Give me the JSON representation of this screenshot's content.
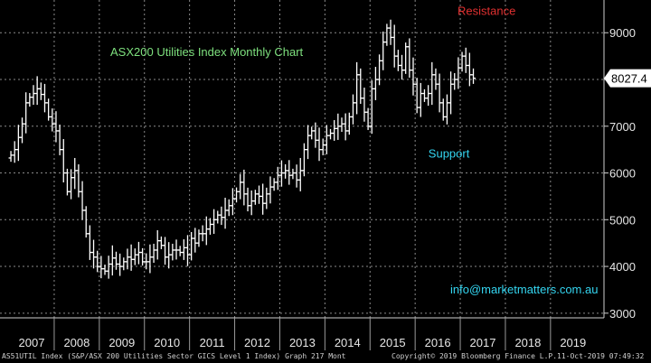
{
  "chart_data": {
    "type": "bar",
    "style": "ohlc",
    "title": "ASX200 Utilities Index Monthly Chart",
    "xlabel": "",
    "ylabel": "",
    "x_tick_labels": [
      "2007",
      "2008",
      "2009",
      "2010",
      "2011",
      "2012",
      "2013",
      "2014",
      "2015",
      "2016",
      "2017",
      "2018",
      "2019"
    ],
    "y_tick_labels": [
      "3000",
      "4000",
      "5000",
      "6000",
      "7000",
      "8000",
      "9000"
    ],
    "ylim": [
      2900,
      9700
    ],
    "grid": true,
    "last_value_label": "8027.4",
    "last_value": 8027.4,
    "annotations": [
      {
        "text": "Resistance",
        "x": "2017-08",
        "y": 9380,
        "color": "#e03030"
      },
      {
        "text": "Support",
        "x": "2016-10",
        "y": 6330,
        "color": "#34d5f0"
      },
      {
        "text": "info@marketmatters.com.au",
        "x": "2018-06",
        "y": 3420,
        "color": "#34d5f0"
      }
    ],
    "colors": {
      "background": "#000000",
      "bars": "#ffffff",
      "grid": "#888888",
      "title": "#7ee07e"
    },
    "series": [
      {
        "close": [
          6380,
          6500,
          6760,
          7050,
          7500,
          7620,
          7700,
          7800,
          7680,
          7500,
          7200,
          7050,
          6900,
          6500,
          6000,
          5600,
          5900,
          6050,
          5600,
          5200,
          4700,
          4300,
          4200,
          4000,
          3950,
          3900,
          4050,
          4180,
          4050,
          4000,
          4100,
          4200,
          4150,
          4250,
          4300,
          4100,
          4100,
          4200,
          4350,
          4550,
          4450,
          4200,
          4250,
          4350,
          4350,
          4300,
          4400,
          4250,
          4600,
          4500,
          4700,
          4700,
          4800,
          4900,
          5000,
          5100,
          5050,
          5200,
          5300,
          5450,
          5600,
          5800,
          5550,
          5300,
          5400,
          5550,
          5500,
          5350,
          5550,
          5700,
          5800,
          5950,
          6000,
          6050,
          5950,
          6000,
          5850,
          6050,
          6500,
          6800,
          6900,
          6700,
          6500,
          6600,
          6800,
          6850,
          6950,
          7000,
          7050,
          6900,
          7200,
          7500,
          8100,
          7600,
          7300,
          7000,
          7800,
          8000,
          8400,
          8800,
          9100,
          8900,
          8500,
          8300,
          8200,
          8700,
          8200,
          7900,
          7400,
          7700,
          7600,
          7700,
          8100,
          7900,
          7500,
          7200,
          7500,
          7900,
          8000,
          8250,
          8500,
          8300,
          8100,
          8027
        ]
      }
    ]
  },
  "footer": {
    "left": "AS51UTIL Index (S&P/ASX 200 Utilities Sector GICS Level 1 Index) Graph 217  Mont",
    "center": "Copyright© 2019 Bloomberg Finance L.P.",
    "right": "11-Oct-2019 07:49:32"
  }
}
